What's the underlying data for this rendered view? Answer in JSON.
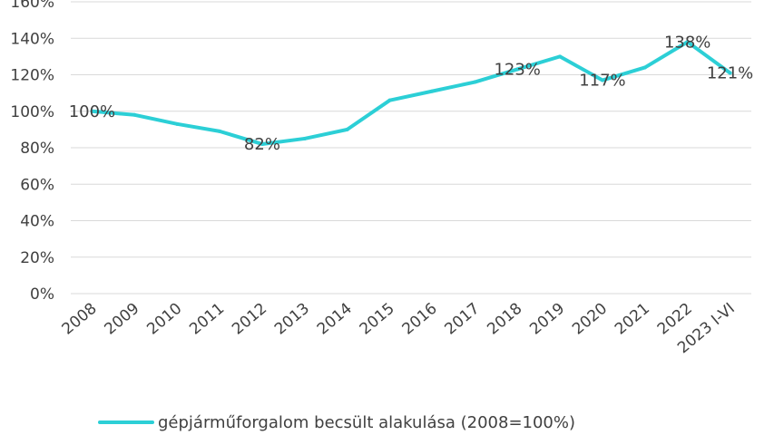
{
  "chart_data": {
    "type": "line",
    "categories": [
      "2008",
      "2009",
      "2010",
      "2011",
      "2012",
      "2013",
      "2014",
      "2015",
      "2016",
      "2017",
      "2018",
      "2019",
      "2020",
      "2021",
      "2022",
      "2023 I-VI"
    ],
    "y_ticks": [
      "0%",
      "20%",
      "40%",
      "60%",
      "80%",
      "100%",
      "120%",
      "140%",
      "160%"
    ],
    "ylim": [
      0,
      160
    ],
    "grid": true,
    "series": [
      {
        "name": "gépjárműforgalom becsült alakulása (2008=100%)",
        "color": "#2ccfd6",
        "values": [
          100,
          98,
          93,
          89,
          82,
          85,
          90,
          106,
          111,
          116,
          123,
          130,
          117,
          124,
          138,
          121
        ]
      }
    ],
    "data_labels": [
      {
        "index": 0,
        "text": "100%"
      },
      {
        "index": 4,
        "text": "82%"
      },
      {
        "index": 10,
        "text": "123%"
      },
      {
        "index": 12,
        "text": "117%"
      },
      {
        "index": 14,
        "text": "138%"
      },
      {
        "index": 15,
        "text": "121%"
      }
    ],
    "legend": "bottom"
  }
}
